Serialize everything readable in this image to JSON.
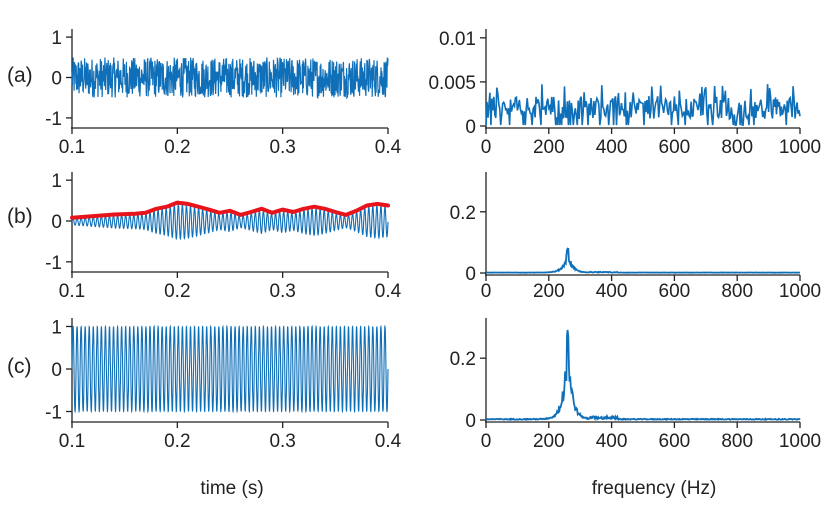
{
  "figure": {
    "panel_labels": [
      "(a)",
      "(b)",
      "(c)"
    ],
    "time_axis_title": "time (s)",
    "frequency_axis_title": "frequency (Hz)",
    "colors": {
      "signal": "#0f6fb8",
      "envelope": "#e8141b",
      "axis": "#222222"
    }
  },
  "chart_data": [
    {
      "id": "a-time",
      "panel": "(a)",
      "type": "line",
      "xlabel": "time (s)",
      "ylabel": "",
      "xlim": [
        0.1,
        0.4
      ],
      "ylim": [
        -1.2,
        1.2
      ],
      "xticks": [
        0.1,
        0.2,
        0.3,
        0.4
      ],
      "xtick_labels": [
        "0.1",
        "0.2",
        "0.3",
        "0.4"
      ],
      "yticks": [
        -1,
        0,
        1
      ],
      "ytick_labels": [
        "-1",
        "0",
        "1"
      ],
      "series": [
        {
          "kind": "noise",
          "color": "#0f6fb8",
          "amplitude_range": [
            -0.5,
            0.5
          ]
        }
      ]
    },
    {
      "id": "a-freq",
      "panel": "(a)",
      "type": "line",
      "xlabel": "frequency (Hz)",
      "ylabel": "",
      "xlim": [
        0,
        1000
      ],
      "ylim": [
        0,
        0.011
      ],
      "xticks": [
        0,
        200,
        400,
        600,
        800,
        1000
      ],
      "xtick_labels": [
        "0",
        "200",
        "400",
        "600",
        "800",
        "1000"
      ],
      "yticks": [
        0,
        0.005,
        0.01
      ],
      "ytick_labels": [
        "0",
        "0.005",
        "0.01"
      ],
      "series": [
        {
          "kind": "flat-spectrum",
          "color": "#0f6fb8",
          "mean_level": 0.002,
          "max_level": 0.0048
        }
      ]
    },
    {
      "id": "b-time",
      "panel": "(b)",
      "type": "line",
      "xlabel": "time (s)",
      "ylabel": "",
      "xlim": [
        0.1,
        0.4
      ],
      "ylim": [
        -1.2,
        1.2
      ],
      "xticks": [
        0.1,
        0.2,
        0.3,
        0.4
      ],
      "xtick_labels": [
        "0.1",
        "0.2",
        "0.3",
        "0.4"
      ],
      "yticks": [
        -1,
        0,
        1
      ],
      "ytick_labels": [
        "-1",
        "0",
        "1"
      ],
      "series": [
        {
          "kind": "modulated-sine",
          "color": "#0f6fb8",
          "frequency_hz": 260
        },
        {
          "kind": "envelope",
          "color": "#e8141b",
          "t": [
            0.1,
            0.12,
            0.14,
            0.16,
            0.17,
            0.18,
            0.19,
            0.2,
            0.21,
            0.22,
            0.23,
            0.24,
            0.25,
            0.26,
            0.27,
            0.28,
            0.29,
            0.3,
            0.31,
            0.32,
            0.33,
            0.34,
            0.35,
            0.36,
            0.37,
            0.38,
            0.39,
            0.4
          ],
          "values": [
            0.08,
            0.12,
            0.16,
            0.18,
            0.2,
            0.3,
            0.35,
            0.45,
            0.42,
            0.35,
            0.28,
            0.2,
            0.25,
            0.15,
            0.22,
            0.3,
            0.2,
            0.28,
            0.22,
            0.3,
            0.35,
            0.3,
            0.22,
            0.15,
            0.25,
            0.38,
            0.42,
            0.38
          ]
        }
      ]
    },
    {
      "id": "b-freq",
      "panel": "(b)",
      "type": "line",
      "xlabel": "frequency (Hz)",
      "ylabel": "",
      "xlim": [
        0,
        1000
      ],
      "ylim": [
        0,
        0.33
      ],
      "xticks": [
        0,
        200,
        400,
        600,
        800,
        1000
      ],
      "xtick_labels": [
        "0",
        "200",
        "400",
        "600",
        "800",
        "1000"
      ],
      "yticks": [
        0,
        0.2
      ],
      "ytick_labels": [
        "0",
        "0.2"
      ],
      "series": [
        {
          "kind": "peak-spectrum",
          "color": "#0f6fb8",
          "peak_hz": 260,
          "peak_value": 0.08
        }
      ]
    },
    {
      "id": "c-time",
      "panel": "(c)",
      "type": "line",
      "xlabel": "time (s)",
      "ylabel": "",
      "xlim": [
        0.1,
        0.4
      ],
      "ylim": [
        -1.2,
        1.2
      ],
      "xticks": [
        0.1,
        0.2,
        0.3,
        0.4
      ],
      "xtick_labels": [
        "0.1",
        "0.2",
        "0.3",
        "0.4"
      ],
      "yticks": [
        -1,
        0,
        1
      ],
      "ytick_labels": [
        "-1",
        "0",
        "1"
      ],
      "series": [
        {
          "kind": "sine",
          "color": "#0f6fb8",
          "frequency_hz": 260,
          "amplitude": 1.0
        }
      ]
    },
    {
      "id": "c-freq",
      "panel": "(c)",
      "type": "line",
      "xlabel": "frequency (Hz)",
      "ylabel": "",
      "xlim": [
        0,
        1000
      ],
      "ylim": [
        0,
        0.33
      ],
      "xticks": [
        0,
        200,
        400,
        600,
        800,
        1000
      ],
      "xtick_labels": [
        "0",
        "200",
        "400",
        "600",
        "800",
        "1000"
      ],
      "yticks": [
        0,
        0.2
      ],
      "ytick_labels": [
        "0",
        "0.2"
      ],
      "series": [
        {
          "kind": "peak-spectrum",
          "color": "#0f6fb8",
          "peak_hz": 260,
          "peak_value": 0.29
        }
      ]
    }
  ]
}
